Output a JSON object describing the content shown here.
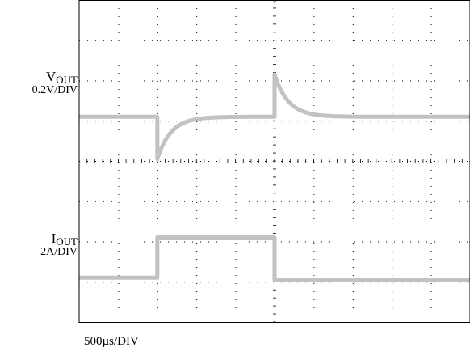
{
  "chart_data": {
    "type": "line",
    "title": "",
    "grid": true,
    "xlabel": "500µs/DIV",
    "x_divisions": 10,
    "y_divisions": 8,
    "xlim": [
      0,
      10
    ],
    "ylim": [
      0,
      8
    ],
    "trace_color": "#c2c2c2",
    "series": [
      {
        "label_main": "V",
        "label_sub": "OUT",
        "scale": "0.2V/DIV",
        "baseline": 5.1,
        "segments": [
          {
            "from": 0,
            "to": 2,
            "type": "flat",
            "level": 5.1
          },
          {
            "from": 2,
            "to": 5,
            "type": "recovery",
            "start": 4.05,
            "end": 5.1,
            "tau": 0.35
          },
          {
            "from": 5,
            "to": 10,
            "type": "recovery",
            "start": 6.15,
            "end": 5.1,
            "tau": 0.35
          }
        ]
      },
      {
        "label_main": "I",
        "label_sub": "OUT",
        "scale": "2A/DIV",
        "segments": [
          {
            "from": 0,
            "to": 2,
            "type": "flat",
            "level": 1.1
          },
          {
            "from": 2,
            "to": 5,
            "type": "flat",
            "level": 2.1
          },
          {
            "from": 5,
            "to": 10,
            "type": "flat",
            "level": 1.05
          }
        ]
      }
    ]
  },
  "labels": {
    "vout_main": "V",
    "vout_sub": "OUT",
    "vout_scale": "0.2V/DIV",
    "iout_main": "I",
    "iout_sub": "OUT",
    "iout_scale": "2A/DIV",
    "time_scale": "500µs/DIV"
  }
}
